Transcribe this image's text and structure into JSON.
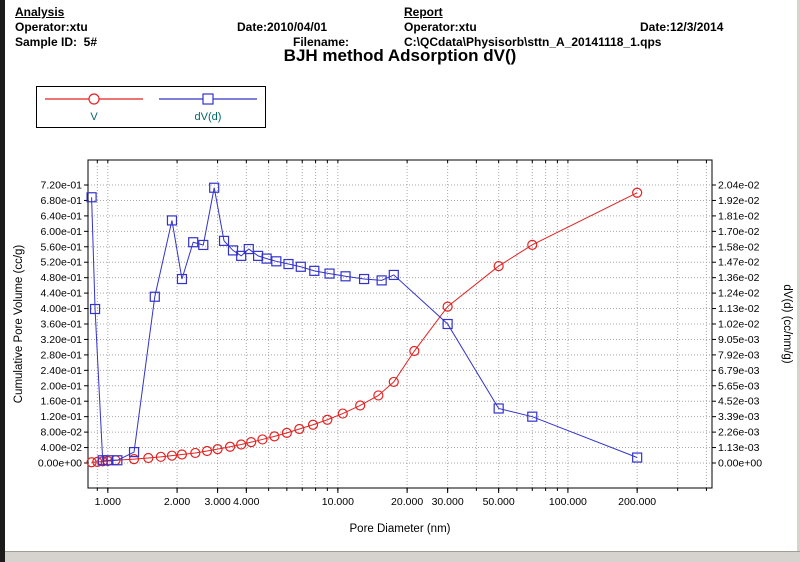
{
  "header": {
    "analysis": {
      "heading": "Analysis",
      "operator": "Operator:xtu",
      "date": "Date:2010/04/01",
      "sample_id": "Sample ID:  5#",
      "filename_label": "Filename:"
    },
    "report": {
      "heading": "Report",
      "operator": "Operator:xtu",
      "date": "Date:12/3/2014",
      "filename": "C:\\QCdata\\Physisorb\\sttn_A_20141118_1.qps"
    }
  },
  "colors": {
    "grid": "#a8a8a8",
    "axis": "#000000",
    "legend_label": "#006868",
    "v_series": "#e42222",
    "dvd_series": "#3333cc"
  },
  "chart_data": {
    "type": "line",
    "title": "BJH method Adsorption  dV()",
    "xlabel": "Pore Diameter (nm)",
    "ylabel_left": "Cumulative Pore Volume (cc/g)",
    "ylabel_right": "dV(d)  (cc/nm/g)",
    "x_scale": "log",
    "grid": true,
    "legend_position": "top-left",
    "x_range": [
      0.82,
      423
    ],
    "y_left_range": [
      0,
      0.72
    ],
    "y_right_range": [
      0,
      0.0204
    ],
    "x_ticks": [
      1,
      2,
      3,
      4,
      10,
      20,
      30,
      50,
      100,
      200
    ],
    "x_tick_labels": [
      "1.000",
      "2.000",
      "3.000",
      "4.000",
      "10.000",
      "20.000",
      "30.000",
      "50.000",
      "100.000",
      "200.000"
    ],
    "x_grid": [
      0.9,
      1,
      2,
      3,
      4,
      5,
      6,
      7,
      8,
      9,
      10,
      20,
      30,
      40,
      50,
      60,
      70,
      80,
      90,
      100,
      200,
      300,
      400
    ],
    "y_left_ticks": [
      "7.20e-01",
      "6.80e-01",
      "6.40e-01",
      "6.00e-01",
      "5.60e-01",
      "5.20e-01",
      "4.80e-01",
      "4.40e-01",
      "4.00e-01",
      "3.60e-01",
      "3.20e-01",
      "2.80e-01",
      "2.40e-01",
      "2.00e-01",
      "1.60e-01",
      "1.20e-01",
      "8.00e-02",
      "4.00e-02",
      "0.00e+00"
    ],
    "y_right_ticks": [
      "2.04e-02",
      "1.92e-02",
      "1.81e-02",
      "1.70e-02",
      "1.58e-02",
      "1.47e-02",
      "1.36e-02",
      "1.24e-02",
      "1.13e-02",
      "1.02e-02",
      "9.05e-03",
      "7.92e-03",
      "6.79e-03",
      "5.65e-03",
      "4.52e-03",
      "3.39e-03",
      "2.26e-03",
      "1.13e-03",
      "0.00e+00"
    ],
    "series": [
      {
        "name": "V",
        "axis": "left",
        "color": "#e42222",
        "marker": "circle",
        "x": [
          0.85,
          0.9,
          0.95,
          1.0,
          1.08,
          1.3,
          1.5,
          1.7,
          1.9,
          2.1,
          2.4,
          2.7,
          3.0,
          3.4,
          3.8,
          4.2,
          4.7,
          5.3,
          6.0,
          6.8,
          7.8,
          9.0,
          10.5,
          12.5,
          15.0,
          17.5,
          21.5,
          30.0,
          50.0,
          70.0,
          200.0
        ],
        "y": [
          0.002,
          0.003,
          0.004,
          0.005,
          0.007,
          0.01,
          0.013,
          0.016,
          0.019,
          0.022,
          0.026,
          0.031,
          0.036,
          0.042,
          0.048,
          0.054,
          0.061,
          0.069,
          0.078,
          0.088,
          0.099,
          0.112,
          0.128,
          0.149,
          0.175,
          0.21,
          0.29,
          0.405,
          0.51,
          0.565,
          0.7
        ]
      },
      {
        "name": "dV(d)",
        "axis": "right",
        "color": "#3333cc",
        "marker": "square",
        "x": [
          0.85,
          0.88,
          0.95,
          1.0,
          1.1,
          1.3,
          1.6,
          1.9,
          2.1,
          2.35,
          2.6,
          2.9,
          3.2,
          3.5,
          3.8,
          4.1,
          4.5,
          4.9,
          5.4,
          6.1,
          6.9,
          7.9,
          9.2,
          10.8,
          13.0,
          15.5,
          17.5,
          30.0,
          50.0,
          70.0,
          200.0
        ],
        "y": [
          0.0195,
          0.0113,
          0.0002,
          0.0002,
          0.0002,
          0.0008,
          0.0122,
          0.0178,
          0.0135,
          0.0162,
          0.016,
          0.0202,
          0.0163,
          0.0156,
          0.0152,
          0.0157,
          0.0152,
          0.015,
          0.0148,
          0.0146,
          0.0144,
          0.0141,
          0.0139,
          0.0137,
          0.0135,
          0.0134,
          0.0138,
          0.0102,
          0.004,
          0.0034,
          0.0004
        ]
      }
    ]
  }
}
